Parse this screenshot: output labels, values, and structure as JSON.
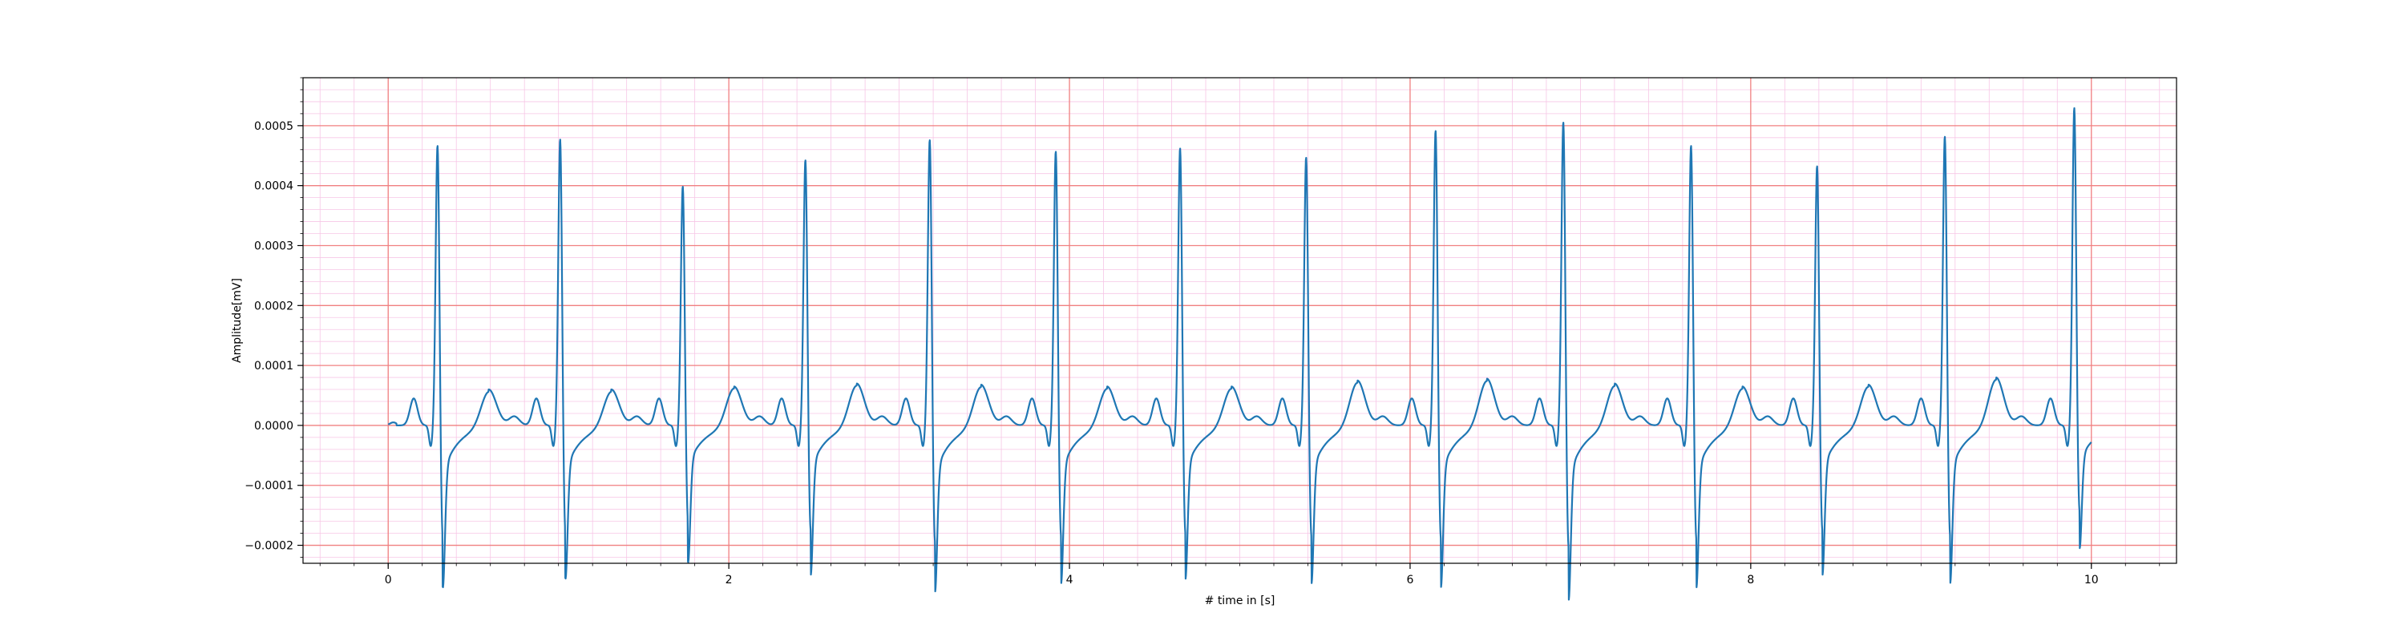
{
  "chart_data": {
    "type": "line",
    "title": "",
    "xlabel": "# time in [s]",
    "ylabel": "Amplitude[mV]",
    "xlim": [
      -0.5,
      10.5
    ],
    "ylim": [
      -0.00023,
      0.00058
    ],
    "xticks": [
      0,
      2,
      4,
      6,
      8,
      10
    ],
    "xtick_labels": [
      "0",
      "2",
      "4",
      "6",
      "8",
      "10"
    ],
    "yticks": [
      -0.0002,
      -0.0001,
      0.0,
      0.0001,
      0.0002,
      0.0003,
      0.0004,
      0.0005
    ],
    "ytick_labels": [
      "−0.0002",
      "−0.0001",
      "0.0000",
      "0.0001",
      "0.0002",
      "0.0003",
      "0.0004",
      "0.0005"
    ],
    "grid": {
      "major": true,
      "minor": true,
      "major_color": "#f08080",
      "minor_color": "#f7c6e6",
      "x_major_step": 2,
      "x_minor_step": 0.2,
      "y_major_step": 0.0001,
      "y_minor_step": 2e-05
    },
    "series": [
      {
        "color": "#1f77b4",
        "x_start": 0,
        "x_end": 10,
        "r_peaks_s": [
          0.29,
          1.01,
          1.73,
          2.45,
          3.18,
          3.92,
          4.65,
          5.39,
          6.15,
          6.9,
          7.65,
          8.39,
          9.14,
          9.9
        ],
        "r_peak_amplitudes": [
          0.00048,
          0.00049,
          0.00041,
          0.000455,
          0.00049,
          0.00047,
          0.000475,
          0.00046,
          0.000505,
          0.00052,
          0.00048,
          0.000445,
          0.000495,
          0.00054
        ],
        "s_trough_amplitudes": [
          -0.00018,
          -0.00017,
          -0.00015,
          -0.000165,
          -0.000185,
          -0.000175,
          -0.00017,
          -0.000175,
          -0.00018,
          -0.000195,
          -0.00018,
          -0.000165,
          -0.000175,
          -0.000135
        ],
        "t_wave_amplitudes": [
          6e-05,
          6e-05,
          6.5e-05,
          7e-05,
          6.8e-05,
          6.5e-05,
          6.5e-05,
          7.5e-05,
          7.8e-05,
          7e-05,
          6.5e-05,
          6.8e-05,
          8e-05,
          4.8e-05
        ],
        "p_wave_amplitude": 4.5e-05,
        "baseline_before_p": -7e-05
      }
    ]
  }
}
